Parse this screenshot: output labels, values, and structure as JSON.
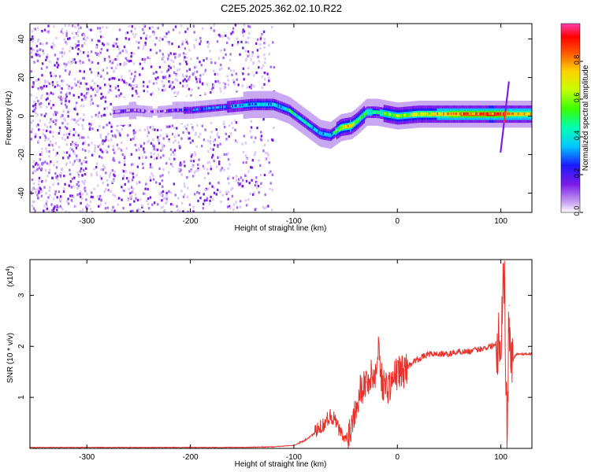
{
  "title": "C2E5.2025.362.02.10.R22",
  "chart_data": [
    {
      "type": "heatmap",
      "xlabel": "Height of straight line (km)",
      "ylabel": "Frequency (Hz)",
      "xlim": [
        -355,
        130
      ],
      "ylim": [
        -50,
        48
      ],
      "xticks": [
        -300,
        -200,
        -100,
        0,
        100
      ],
      "yticks": [
        -40,
        -20,
        0,
        20,
        40
      ],
      "colorbar": {
        "label": "Normalized spectral amplitude",
        "range": [
          0,
          1
        ],
        "ticks": [
          "0.0",
          "0.2",
          "0.4",
          "0.6",
          "0.8"
        ],
        "tick_values": [
          0,
          0.2,
          0.4,
          0.6,
          0.8
        ]
      },
      "signal_track": {
        "x": [
          -275,
          -255,
          -235,
          -215,
          -200,
          -180,
          -160,
          -140,
          -120,
          -105,
          -95,
          -85,
          -75,
          -65,
          -55,
          -45,
          -40,
          -30,
          -20,
          -10,
          0,
          20,
          40,
          60,
          80,
          90,
          100,
          110,
          130
        ],
        "y": [
          2,
          3,
          2,
          3,
          3,
          4,
          5,
          6,
          6,
          3,
          -1,
          -5,
          -9,
          -10,
          -6,
          -5,
          -3,
          2,
          2,
          1,
          0,
          1,
          1,
          1,
          1,
          1,
          1,
          1,
          1
        ],
        "amplitude": [
          0.15,
          0.2,
          0.1,
          0.2,
          0.25,
          0.3,
          0.35,
          0.4,
          0.4,
          0.45,
          0.45,
          0.45,
          0.4,
          0.4,
          0.7,
          0.8,
          0.6,
          0.55,
          0.5,
          0.6,
          0.6,
          0.7,
          0.8,
          0.85,
          0.9,
          0.95,
          0.9,
          0.8,
          0.8
        ]
      },
      "noise_region": {
        "x": [
          -355,
          -120
        ],
        "description_level": "low"
      }
    },
    {
      "type": "line",
      "xlabel": "Height of straight line (km)",
      "ylabel": "SNR (10 * v/v)",
      "y_multiplier": "(x10",
      "y_multiplier_exp": "4",
      "y_multiplier_close": ")",
      "xlim": [
        -355,
        130
      ],
      "ylim": [
        0,
        3.7
      ],
      "xticks": [
        -300,
        -200,
        -100,
        0,
        100
      ],
      "yticks": [
        1,
        2,
        3
      ],
      "series": [
        {
          "color": "#e8312b",
          "x": [
            -355,
            -300,
            -250,
            -200,
            -150,
            -120,
            -100,
            -90,
            -80,
            -70,
            -65,
            -60,
            -55,
            -50,
            -45,
            -40,
            -35,
            -30,
            -25,
            -20,
            -18,
            -15,
            -10,
            -5,
            0,
            5,
            10,
            15,
            20,
            25,
            30,
            40,
            50,
            60,
            70,
            80,
            90,
            95,
            100,
            103,
            106,
            108,
            110,
            115,
            120,
            130
          ],
          "y": [
            0.02,
            0.02,
            0.02,
            0.02,
            0.02,
            0.03,
            0.06,
            0.15,
            0.3,
            0.5,
            0.65,
            0.55,
            0.3,
            0.15,
            0.4,
            0.9,
            1.2,
            1.3,
            1.4,
            1.5,
            2.1,
            1.3,
            1.2,
            1.3,
            1.5,
            1.5,
            1.6,
            1.7,
            1.75,
            1.8,
            1.85,
            1.85,
            1.85,
            1.9,
            1.9,
            1.95,
            2.0,
            2.05,
            2.2,
            3.6,
            0.3,
            2.8,
            1.7,
            1.85,
            1.85,
            1.85
          ]
        }
      ]
    }
  ]
}
